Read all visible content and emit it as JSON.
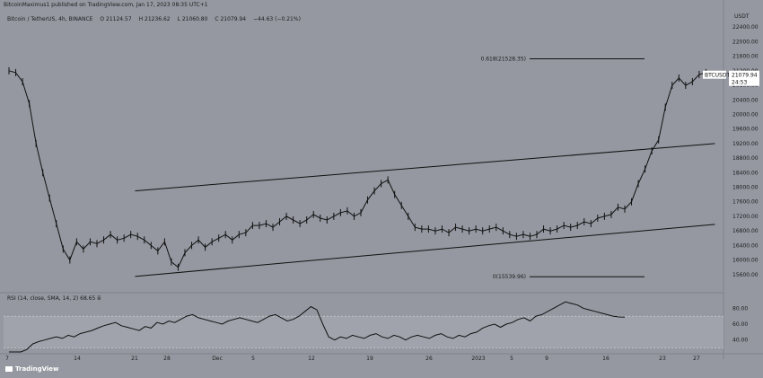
{
  "header": {
    "published_by": "BitcoinMaximus1 published on TradingView.com, Jan 17, 2023 08:35 UTC+1"
  },
  "symbol_line": {
    "name": "Bitcoin / TetherUS, 4h, BINANCE",
    "open": "O 21124.57",
    "high": "H 21236.62",
    "low": "L 21060.80",
    "close": "C 21079.94",
    "change": "−44.63 (−0.21%)"
  },
  "rsi_legend": "RSI (14, close, SMA, 14, 2)  68.65  ⅲ",
  "footer": {
    "brand": "TradingView"
  },
  "colors": {
    "background": "#9598a1",
    "candle": "#111111",
    "text": "#1c1c1c",
    "highlight": "#6cb33f"
  },
  "chart_data": [
    {
      "type": "line",
      "name": "price",
      "currency_label": "USDT",
      "ylim": [
        15200,
        22800
      ],
      "y_ticks": [
        15600,
        16000,
        16400,
        16800,
        17200,
        17600,
        18000,
        18400,
        18800,
        19200,
        19600,
        20000,
        20400,
        20800,
        21200,
        21600,
        22000,
        22400
      ],
      "y_tick_labels": [
        "15600.00",
        "16000.00",
        "16400.00",
        "16800.00",
        "17200.00",
        "17600.00",
        "18000.00",
        "18400.00",
        "18800.00",
        "19200.00",
        "19600.00",
        "20000.00",
        "20400.00",
        "20800.00",
        "21200.00",
        "21600.00",
        "22000.00",
        "22400.00"
      ],
      "x_ticks": [
        "7",
        "14",
        "21",
        "28",
        "Dec",
        "5",
        "12",
        "19",
        "26",
        "2023",
        "5",
        "9",
        "16",
        "23",
        "27"
      ],
      "series": [
        {
          "values": [
            21200,
            21150,
            20900,
            20300,
            19200,
            18400,
            17700,
            17000,
            16300,
            16000,
            16500,
            16300,
            16500,
            16450,
            16550,
            16700,
            16550,
            16600,
            16700,
            16650,
            16550,
            16400,
            16250,
            16500,
            15950,
            15800,
            16200,
            16400,
            16550,
            16350,
            16500,
            16600,
            16700,
            16550,
            16700,
            16750,
            16950,
            16950,
            17000,
            16900,
            17050,
            17200,
            17100,
            17000,
            17100,
            17250,
            17150,
            17100,
            17200,
            17300,
            17350,
            17200,
            17300,
            17650,
            17900,
            18100,
            18200,
            17800,
            17500,
            17200,
            16900,
            16850,
            16850,
            16800,
            16850,
            16750,
            16900,
            16850,
            16800,
            16850,
            16800,
            16850,
            16900,
            16800,
            16700,
            16650,
            16700,
            16650,
            16700,
            16850,
            16800,
            16850,
            16950,
            16900,
            16950,
            17050,
            17000,
            17150,
            17200,
            17250,
            17450,
            17400,
            17600,
            18100,
            18500,
            19000,
            19300,
            20200,
            20800,
            21000,
            20800,
            20900,
            21100,
            21150,
            21080
          ]
        }
      ],
      "annotations": [
        {
          "label": "0.618(21528.35)",
          "y": 21528.35
        },
        {
          "label": "0(15539.96)",
          "y": 15539.96
        }
      ],
      "channel": {
        "upper": [
          [
            0.177,
            17900
          ],
          [
            0.937,
            19200
          ]
        ],
        "lower": [
          [
            0.177,
            15550
          ],
          [
            0.937,
            16980
          ]
        ]
      },
      "price_label": {
        "symbol": "BTCUSDT",
        "price": "21079.94",
        "countdown": "24:53"
      },
      "grid": false
    },
    {
      "type": "line",
      "name": "RSI",
      "ylim": [
        25,
        95
      ],
      "y_ticks": [
        40,
        60,
        80
      ],
      "y_tick_labels": [
        "40.00",
        "60.00",
        "80.00"
      ],
      "bands": [
        30,
        70
      ],
      "series": [
        {
          "values": [
            20,
            22,
            24,
            28,
            35,
            38,
            40,
            42,
            44,
            42,
            46,
            44,
            48,
            50,
            52,
            55,
            58,
            60,
            62,
            58,
            56,
            54,
            52,
            57,
            55,
            62,
            60,
            64,
            62,
            66,
            70,
            72,
            68,
            66,
            64,
            62,
            60,
            64,
            66,
            68,
            66,
            64,
            62,
            66,
            70,
            72,
            68,
            64,
            66,
            70,
            76,
            82,
            78,
            60,
            44,
            40,
            44,
            42,
            46,
            44,
            42,
            46,
            48,
            44,
            42,
            46,
            44,
            40,
            44,
            46,
            44,
            42,
            46,
            48,
            44,
            42,
            46,
            44,
            48,
            50,
            55,
            58,
            60,
            56,
            60,
            62,
            66,
            68,
            64,
            70,
            72,
            76,
            80,
            84,
            88,
            86,
            84,
            80,
            78,
            76,
            74,
            72,
            70,
            69,
            68.65
          ]
        }
      ]
    }
  ]
}
